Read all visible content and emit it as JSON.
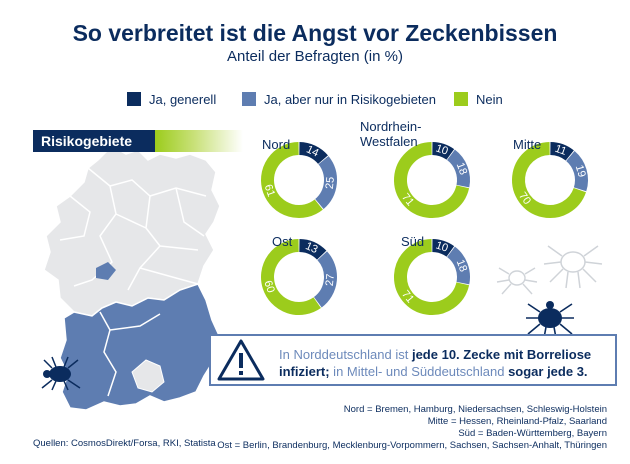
{
  "title": "So verbreitet ist die Angst vor Zeckenbissen",
  "subtitle": "Anteil der Befragten (in %)",
  "legend": [
    {
      "label": "Ja, generell",
      "color": "#0b2c5e"
    },
    {
      "label": "Ja, aber nur in Risikogebieten",
      "color": "#5e7db1"
    },
    {
      "label": "Nein",
      "color": "#9ccc1c"
    }
  ],
  "map_label": "Risikogebiete",
  "chart_data": {
    "type": "pie",
    "subtype": "donut",
    "series_names": [
      "Ja, generell",
      "Ja, aber nur in Risikogebieten",
      "Nein"
    ],
    "colors": [
      "#0b2c5e",
      "#5e7db1",
      "#9ccc1c"
    ],
    "charts": [
      {
        "region": "Nord",
        "values": [
          14,
          25,
          61
        ]
      },
      {
        "region": "Nordrhein-Westfalen",
        "values": [
          10,
          18,
          71
        ]
      },
      {
        "region": "Mitte",
        "values": [
          11,
          19,
          70
        ]
      },
      {
        "region": "Ost",
        "values": [
          13,
          27,
          60
        ]
      },
      {
        "region": "Süd",
        "values": [
          10,
          18,
          71
        ]
      }
    ]
  },
  "regions": {
    "nord": "Nord",
    "nrw_line1": "Nordrhein-",
    "nrw_line2": "Westfalen",
    "mitte": "Mitte",
    "ost": "Ost",
    "sued": "Süd"
  },
  "warning": {
    "part1": "In Norddeutschland ist ",
    "bold1": "jede 10. Zecke mit Borreliose infiziert;",
    "part2": " in Mittel- und Süddeutschland ",
    "bold2": "sogar jede 3."
  },
  "definitions": [
    "Nord = Bremen, Hamburg, Niedersachsen, Schleswig-Holstein",
    "Mitte = Hessen, Rheinland-Pfalz, Saarland",
    "Süd = Baden-Württemberg, Bayern",
    "Ost = Berlin, Brandenburg, Mecklenburg-Vorpommern, Sachsen, Sachsen-Anhalt, Thüringen"
  ],
  "source": "Quellen: CosmosDirekt/Forsa, RKI, Statista"
}
